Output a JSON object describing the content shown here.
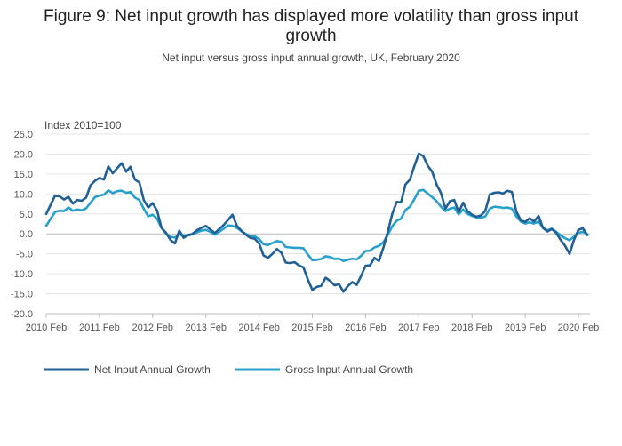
{
  "chart_data": {
    "type": "line",
    "title_line1": "Figure 9: Net input growth has displayed more volatility than gross input",
    "title_line2": "growth",
    "subtitle": "Net input versus gross input annual growth, UK, February 2020",
    "ylabel": "Index 2010=100",
    "xlabel": "",
    "ylim": [
      -20,
      25
    ],
    "yticks": [
      "25.0",
      "20.0",
      "15.0",
      "10.0",
      "5.0",
      "0.0",
      "-5.0",
      "-10.0",
      "-15.0",
      "-20.0"
    ],
    "xticks": [
      "2010 Feb",
      "2011 Feb",
      "2012 Feb",
      "2013 Feb",
      "2014 Feb",
      "2015 Feb",
      "2016 Feb",
      "2017 Feb",
      "2018 Feb",
      "2019 Feb",
      "2020 Feb"
    ],
    "grid": true,
    "legend_position": "bottom-left",
    "colors": {
      "net": "#206095",
      "gross": "#27a0cc",
      "grid": "#e5e5e5",
      "axis": "#bbbbbb"
    },
    "series": [
      {
        "name": "Net Input Annual Growth",
        "color": "#206095",
        "values": [
          5.0,
          7.3,
          9.6,
          9.4,
          8.6,
          9.3,
          7.6,
          8.5,
          8.3,
          9.1,
          12.2,
          13.3,
          14.0,
          13.6,
          16.9,
          15.2,
          16.5,
          17.7,
          15.6,
          16.8,
          13.6,
          12.9,
          8.5,
          6.6,
          7.7,
          5.8,
          1.5,
          0.3,
          -1.5,
          -2.4,
          0.8,
          -1.0,
          -0.3,
          0.0,
          0.9,
          1.5,
          2.0,
          1.1,
          0.2,
          1.2,
          2.2,
          3.5,
          4.8,
          2.0,
          0.8,
          -0.2,
          -1.0,
          -1.2,
          -2.4,
          -5.4,
          -6.0,
          -5.0,
          -3.8,
          -4.7,
          -7.2,
          -7.3,
          -7.1,
          -7.9,
          -8.4,
          -11.5,
          -14.0,
          -13.3,
          -13.0,
          -11.0,
          -11.8,
          -12.9,
          -12.6,
          -14.5,
          -13.1,
          -12.1,
          -12.8,
          -10.5,
          -8.0,
          -7.9,
          -6.0,
          -6.8,
          -3.5,
          0.5,
          5.0,
          8.0,
          7.9,
          12.4,
          13.6,
          17.0,
          20.1,
          19.5,
          17.1,
          15.6,
          12.4,
          10.2,
          6.3,
          8.2,
          8.5,
          5.4,
          7.8,
          5.7,
          4.8,
          4.3,
          4.6,
          5.8,
          9.8,
          10.3,
          10.4,
          10.1,
          10.8,
          10.5,
          5.6,
          3.4,
          3.0,
          3.9,
          3.1,
          4.5,
          1.5,
          0.6,
          1.2,
          0.2,
          -1.5,
          -3.0,
          -5.0,
          -1.5,
          1.0,
          1.4,
          -0.3
        ]
      },
      {
        "name": "Gross Input Annual Growth",
        "color": "#27a0cc",
        "values": [
          2.0,
          3.8,
          5.5,
          5.8,
          5.7,
          6.6,
          5.8,
          6.1,
          5.9,
          6.4,
          7.8,
          9.2,
          9.6,
          9.8,
          10.9,
          10.2,
          10.7,
          10.8,
          10.3,
          10.5,
          9.1,
          8.5,
          6.3,
          4.4,
          4.8,
          3.8,
          1.5,
          0.1,
          -0.8,
          -0.9,
          -0.2,
          -0.4,
          -0.4,
          -0.1,
          0.4,
          0.8,
          1.0,
          0.5,
          -0.2,
          0.5,
          1.3,
          2.1,
          2.0,
          1.5,
          0.7,
          0.0,
          -0.6,
          -0.6,
          -1.3,
          -2.6,
          -2.8,
          -2.3,
          -1.8,
          -2.0,
          -3.3,
          -3.4,
          -3.5,
          -3.5,
          -3.6,
          -5.2,
          -6.6,
          -6.5,
          -6.3,
          -5.6,
          -5.8,
          -6.3,
          -6.2,
          -6.8,
          -6.5,
          -6.2,
          -6.4,
          -5.5,
          -4.3,
          -4.2,
          -3.4,
          -3.0,
          -2.1,
          -0.3,
          1.9,
          3.3,
          3.8,
          6.0,
          6.8,
          8.7,
          10.8,
          11.0,
          10.1,
          9.2,
          8.2,
          6.8,
          5.7,
          6.3,
          6.6,
          4.9,
          6.1,
          5.0,
          4.5,
          4.1,
          4.0,
          4.4,
          6.3,
          6.8,
          6.7,
          6.5,
          6.6,
          6.3,
          4.4,
          3.1,
          2.6,
          2.9,
          2.6,
          3.1,
          1.5,
          0.9,
          1.3,
          0.5,
          -0.4,
          -1.1,
          -1.6,
          -0.7,
          0.3,
          0.5,
          -0.1
        ]
      }
    ]
  }
}
